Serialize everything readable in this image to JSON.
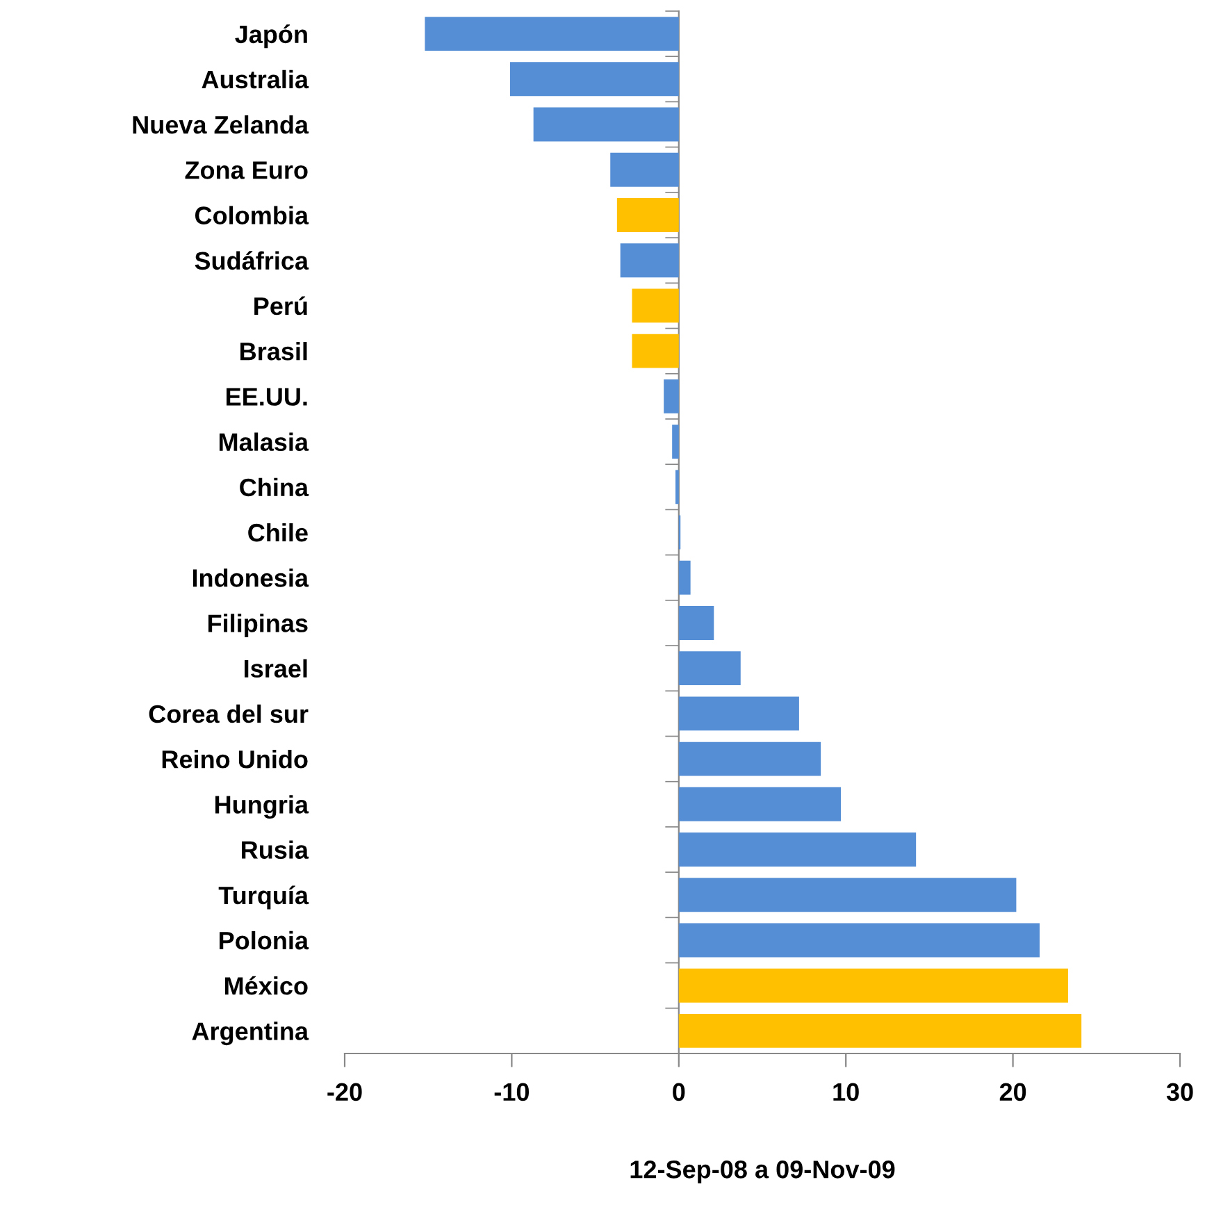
{
  "chart_data": {
    "type": "bar",
    "orientation": "horizontal",
    "xlabel": "12-Sep-08 a 09-Nov-09",
    "categories": [
      "Japón",
      "Australia",
      "Nueva Zelanda",
      "Zona Euro",
      "Colombia",
      "Sudáfrica",
      "Perú",
      "Brasil",
      "EE.UU.",
      "Malasia",
      "China",
      "Chile",
      "Indonesia",
      "Filipinas",
      "Israel",
      "Corea del sur",
      "Reino Unido",
      "Hungria",
      "Rusia",
      "Turquía",
      "Polonia",
      "México",
      "Argentina"
    ],
    "values": [
      -15.2,
      -10.1,
      -8.7,
      -4.1,
      -3.7,
      -3.5,
      -2.8,
      -2.8,
      -0.9,
      -0.4,
      -0.2,
      0.1,
      0.7,
      2.1,
      3.7,
      7.2,
      8.5,
      9.7,
      14.2,
      20.2,
      21.6,
      23.3,
      24.1
    ],
    "colors": [
      "#558ed5",
      "#558ed5",
      "#558ed5",
      "#558ed5",
      "#ffc000",
      "#558ed5",
      "#ffc000",
      "#ffc000",
      "#558ed5",
      "#558ed5",
      "#558ed5",
      "#558ed5",
      "#558ed5",
      "#558ed5",
      "#558ed5",
      "#558ed5",
      "#558ed5",
      "#558ed5",
      "#558ed5",
      "#558ed5",
      "#558ed5",
      "#ffc000",
      "#ffc000"
    ],
    "xlim": [
      -20,
      30
    ],
    "xticks": [
      -20,
      -10,
      0,
      10,
      20,
      30
    ]
  }
}
